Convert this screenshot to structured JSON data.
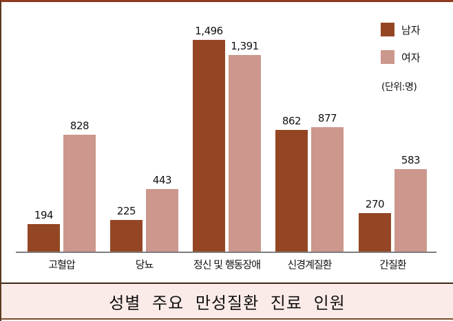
{
  "title": "성별 주요 만성질환 진료 인원",
  "legend": {
    "male": {
      "label": "남자",
      "color": "#944624"
    },
    "female": {
      "label": "여자",
      "color": "#cc978c"
    },
    "unit": "(단위:명)"
  },
  "categories": [
    "고혈압",
    "당뇨",
    "정신 및 행동장애",
    "신경계질환",
    "간질환"
  ],
  "value_labels": {
    "male": [
      "194",
      "225",
      "1,496",
      "862",
      "270"
    ],
    "female": [
      "828",
      "443",
      "1,391",
      "877",
      "583"
    ]
  },
  "chart_data": {
    "type": "bar",
    "title": "성별 주요 만성질환 진료 인원",
    "xlabel": "",
    "ylabel": "",
    "unit": "명",
    "categories": [
      "고혈압",
      "당뇨",
      "정신 및 행동장애",
      "신경계질환",
      "간질환"
    ],
    "series": [
      {
        "name": "남자",
        "color": "#944624",
        "values": [
          194,
          225,
          1496,
          862,
          270
        ]
      },
      {
        "name": "여자",
        "color": "#cc978c",
        "values": [
          828,
          443,
          1391,
          877,
          583
        ]
      }
    ],
    "grid": false,
    "y_axis_visible": false,
    "legend_position": "top-right",
    "data_labels": true
  },
  "colors": {
    "border_top": "#8e3b20",
    "footer_bg": "#fbebe8",
    "axis": "#7d7d80"
  }
}
